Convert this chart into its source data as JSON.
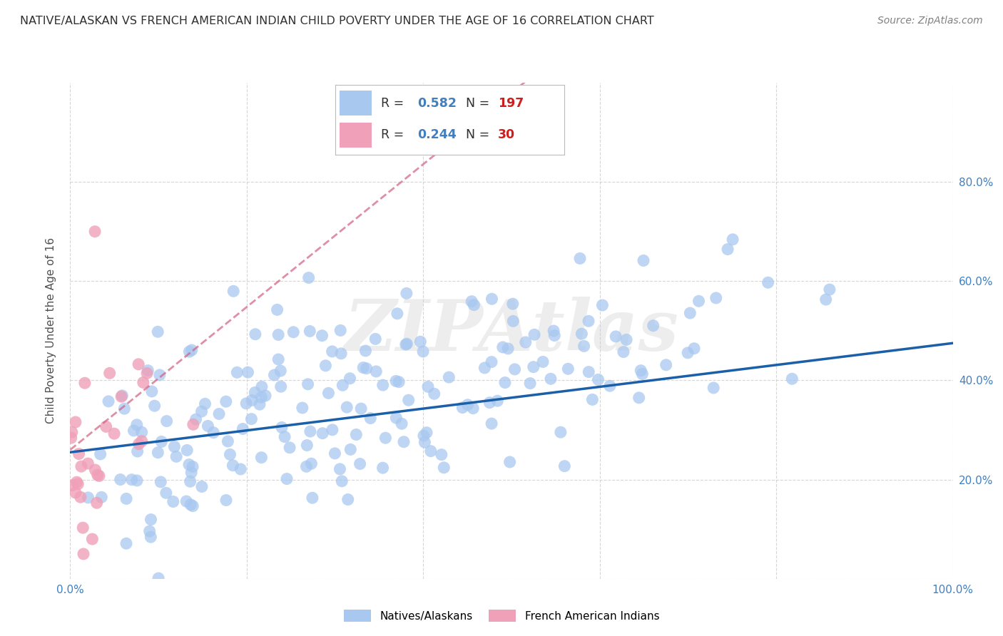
{
  "title": "NATIVE/ALASKAN VS FRENCH AMERICAN INDIAN CHILD POVERTY UNDER THE AGE OF 16 CORRELATION CHART",
  "source": "Source: ZipAtlas.com",
  "ylabel": "Child Poverty Under the Age of 16",
  "xlim": [
    0,
    1
  ],
  "ylim": [
    0,
    1
  ],
  "blue_R": 0.582,
  "blue_N": 197,
  "pink_R": 0.244,
  "pink_N": 30,
  "blue_color": "#a8c8f0",
  "blue_line_color": "#1a5fa8",
  "pink_color": "#f0a0b8",
  "pink_line_color": "#d06080",
  "background_color": "#ffffff",
  "grid_color": "#cccccc",
  "tick_label_color": "#4080c0",
  "title_color": "#303030",
  "source_color": "#808080",
  "ylabel_color": "#505050",
  "watermark_text": "ZIPAtlas",
  "legend_label_blue_1": "R = ",
  "legend_val_blue_R": "0.582",
  "legend_label_blue_2": "N = ",
  "legend_val_blue_N": "197",
  "legend_label_pink_1": "R = ",
  "legend_val_pink_R": "0.244",
  "legend_label_pink_2": "N = ",
  "legend_val_pink_N": "30",
  "bottom_legend_blue": "Natives/Alaskans",
  "bottom_legend_pink": "French American Indians"
}
